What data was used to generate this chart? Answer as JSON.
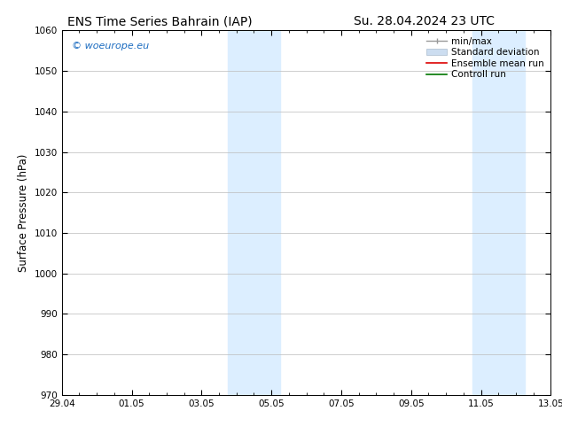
{
  "title_left": "ENS Time Series Bahrain (IAP)",
  "title_right": "Su. 28.04.2024 23 UTC",
  "ylabel": "Surface Pressure (hPa)",
  "ylim": [
    970,
    1060
  ],
  "yticks": [
    970,
    980,
    990,
    1000,
    1010,
    1020,
    1030,
    1040,
    1050,
    1060
  ],
  "xtick_labels": [
    "29.04",
    "01.05",
    "03.05",
    "05.05",
    "07.05",
    "09.05",
    "11.05",
    "13.05"
  ],
  "xtick_positions": [
    0,
    2,
    4,
    6,
    8,
    10,
    12,
    14
  ],
  "xlim": [
    0,
    14
  ],
  "watermark": "© woeurope.eu",
  "watermark_color": "#1a6bc0",
  "shaded_bands": [
    {
      "x_start": 4.75,
      "x_end": 6.25
    },
    {
      "x_start": 11.75,
      "x_end": 13.25
    }
  ],
  "shaded_color": "#dceeff",
  "background_color": "#ffffff",
  "grid_color": "#bbbbbb",
  "legend_entries": [
    {
      "label": "min/max",
      "color": "#999999",
      "lw": 1.0
    },
    {
      "label": "Standard deviation",
      "color": "#ccddf0",
      "lw": 6
    },
    {
      "label": "Ensemble mean run",
      "color": "#dd0000",
      "lw": 1.2
    },
    {
      "label": "Controll run",
      "color": "#007700",
      "lw": 1.2
    }
  ],
  "title_fontsize": 10,
  "tick_fontsize": 7.5,
  "legend_fontsize": 7.5,
  "ylabel_fontsize": 8.5,
  "watermark_fontsize": 8
}
